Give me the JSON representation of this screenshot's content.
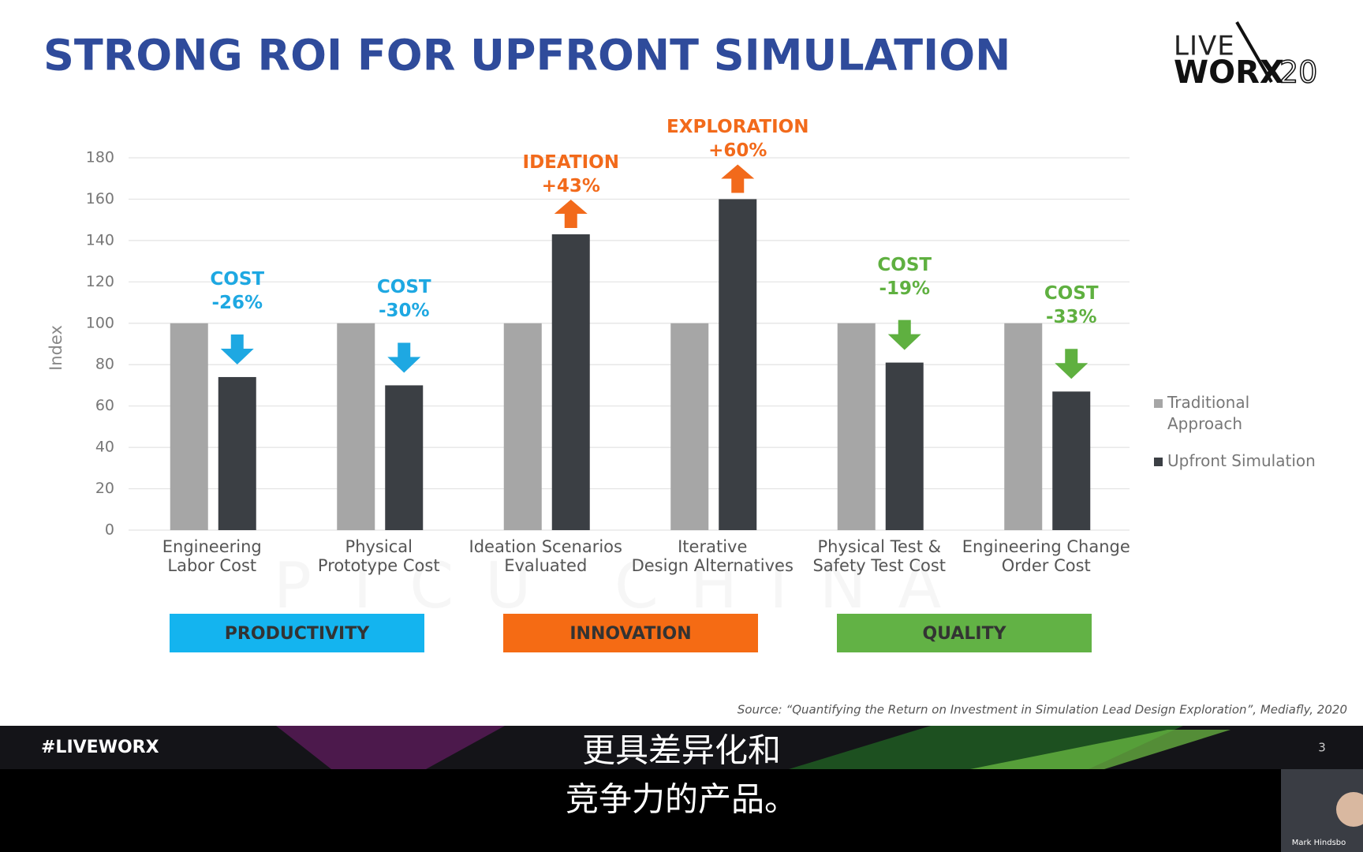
{
  "title": "STRONG ROI FOR UPFRONT SIMULATION",
  "logo": {
    "top": "LIVE",
    "bottom": "WORX",
    "year": "20"
  },
  "chart_data": {
    "type": "bar",
    "ylabel": "Index",
    "categories": [
      "Engineering\nLabor Cost",
      "Physical\nPrototype Cost",
      "Ideation Scenarios\nEvaluated",
      "Iterative\nDesign Alternatives",
      "Physical Test &\nSafety Test Cost",
      "Engineering Change\nOrder Cost"
    ],
    "series": [
      {
        "name": "Traditional\nApproach",
        "color": "#a6a6a6",
        "values": [
          100,
          100,
          100,
          100,
          100,
          100
        ]
      },
      {
        "name": "Upfront Simulation",
        "color": "#3b3f44",
        "values": [
          74,
          70,
          143,
          160,
          81,
          67
        ]
      }
    ],
    "annotations": [
      {
        "text": "COST\n-26%",
        "direction": "down",
        "color": "#1ea8e2"
      },
      {
        "text": "COST\n-30%",
        "direction": "down",
        "color": "#1ea8e2"
      },
      {
        "text": "IDEATION\n+43%",
        "direction": "up",
        "color": "#f26a1b"
      },
      {
        "text": "EXPLORATION\n+60%",
        "direction": "up",
        "color": "#f26a1b"
      },
      {
        "text": "COST\n-19%",
        "direction": "down",
        "color": "#5fb040"
      },
      {
        "text": "COST\n-33%",
        "direction": "down",
        "color": "#5fb040"
      }
    ],
    "ylim": [
      0,
      180
    ],
    "yticks": [
      0,
      20,
      40,
      60,
      80,
      100,
      120,
      140,
      160,
      180
    ],
    "grid": true,
    "legend": "right"
  },
  "groups": [
    {
      "label": "PRODUCTIVITY",
      "color": "#14b4ef"
    },
    {
      "label": "INNOVATION",
      "color": "#f56b14"
    },
    {
      "label": "QUALITY",
      "color": "#62b245"
    }
  ],
  "watermark": "PTCU CHINA",
  "source": "Source: “Quantifying the Return on Investment in Simulation Lead Design Exploration”, Mediafly, 2020",
  "footer": {
    "hashtag": "#LIVEWORX",
    "page": "3"
  },
  "subtitles": [
    "更具差异化和",
    "竞争力的产品。"
  ],
  "speaker": "Mark Hindsbo"
}
